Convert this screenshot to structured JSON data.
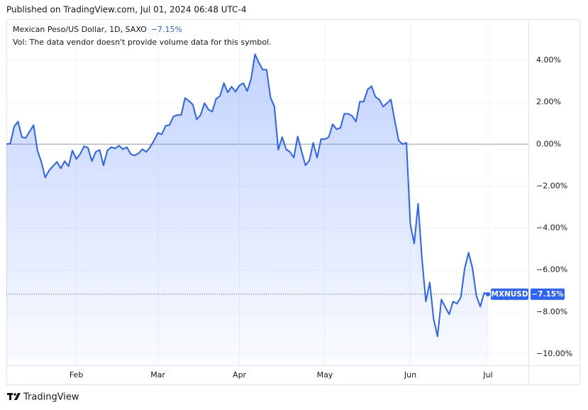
{
  "published": "Published on TradingView.com, Jul 01, 2024 06:48 UTC-4",
  "brand": "TradingView",
  "chart_data": {
    "type": "area",
    "title": "Mexican Peso/US Dollar, 1D, SAXO",
    "subtitle": "Vol: The data vendor doesn't provide volume data for this symbol.",
    "symbol": "MXNUSD",
    "last_label": "−7.15%",
    "color": "#2962ff",
    "grid": true,
    "values": [
      0.0,
      0.03,
      0.84,
      1.08,
      0.34,
      0.3,
      0.61,
      0.91,
      -0.3,
      -0.84,
      -1.59,
      -1.25,
      -1.05,
      -0.84,
      -1.15,
      -0.81,
      -1.05,
      -0.3,
      -0.71,
      -0.47,
      -0.1,
      -0.17,
      -0.81,
      -0.37,
      -0.27,
      -1.01,
      -0.3,
      -0.14,
      -0.2,
      -0.07,
      -0.24,
      -0.14,
      -0.47,
      -0.54,
      -0.44,
      -0.24,
      -0.37,
      -0.14,
      0.17,
      0.54,
      0.47,
      0.88,
      0.91,
      1.32,
      1.39,
      1.39,
      2.2,
      2.06,
      1.89,
      1.18,
      1.39,
      1.96,
      1.66,
      1.55,
      2.16,
      2.3,
      2.91,
      2.47,
      2.74,
      2.5,
      2.8,
      2.91,
      2.53,
      3.11,
      4.29,
      3.89,
      3.55,
      3.55,
      2.23,
      1.79,
      -0.27,
      0.34,
      -0.24,
      -0.37,
      -0.64,
      0.37,
      -0.34,
      -1.01,
      -0.78,
      0.07,
      -0.64,
      0.24,
      0.24,
      0.34,
      0.95,
      0.71,
      0.78,
      1.45,
      1.45,
      1.35,
      1.08,
      2.03,
      2.03,
      2.6,
      2.77,
      2.26,
      2.13,
      1.79,
      1.96,
      2.13,
      1.11,
      0.17,
      0.0,
      0.07,
      -3.82,
      -4.73,
      -2.84,
      -5.47,
      -7.5,
      -6.59,
      -8.34,
      -9.16,
      -7.4,
      -7.77,
      -8.11,
      -7.5,
      -7.6,
      -7.3,
      -5.91,
      -5.17,
      -5.91,
      -7.23,
      -7.74,
      -7.09,
      -7.15
    ],
    "xlim": [
      0,
      134.4
    ],
    "xticks": [
      {
        "value": 18,
        "label": "Feb"
      },
      {
        "value": 39,
        "label": "Mar"
      },
      {
        "value": 60,
        "label": "Apr"
      },
      {
        "value": 82,
        "label": "May"
      },
      {
        "value": 104,
        "label": "Jun"
      },
      {
        "value": 124,
        "label": "Jul"
      }
    ],
    "ylim": [
      -10.54,
      5.96
    ],
    "yticks": [
      {
        "value": 4,
        "label": "4.00%"
      },
      {
        "value": 2,
        "label": "2.00%"
      },
      {
        "value": 0,
        "label": "0.00%"
      },
      {
        "value": -2,
        "label": "−2.00%"
      },
      {
        "value": -4,
        "label": "−4.00%"
      },
      {
        "value": -6,
        "label": "−6.00%"
      },
      {
        "value": -8,
        "label": "−8.00%"
      },
      {
        "value": -10,
        "label": "−10.00%"
      }
    ]
  }
}
